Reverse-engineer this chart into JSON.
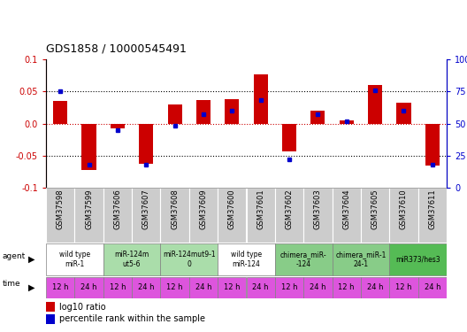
{
  "title": "GDS1858 / 10000545491",
  "samples": [
    "GSM37598",
    "GSM37599",
    "GSM37606",
    "GSM37607",
    "GSM37608",
    "GSM37609",
    "GSM37600",
    "GSM37601",
    "GSM37602",
    "GSM37603",
    "GSM37604",
    "GSM37605",
    "GSM37610",
    "GSM37611"
  ],
  "log10_ratio": [
    0.035,
    -0.072,
    -0.007,
    -0.063,
    0.03,
    0.037,
    0.038,
    0.077,
    -0.044,
    0.02,
    0.005,
    0.06,
    0.032,
    -0.065
  ],
  "percentile_rank": [
    75,
    18,
    45,
    18,
    48,
    57,
    60,
    68,
    22,
    57,
    52,
    76,
    60,
    18
  ],
  "ylim": [
    -0.1,
    0.1
  ],
  "y2lim": [
    0,
    100
  ],
  "yticks": [
    -0.1,
    -0.05,
    0.0,
    0.05,
    0.1
  ],
  "y2ticks": [
    0,
    25,
    50,
    75,
    100
  ],
  "bar_color": "#cc0000",
  "dot_color": "#0000cc",
  "agent_groups": [
    {
      "label": "wild type\nmiR-1",
      "start": 0,
      "end": 2,
      "color": "#ffffff"
    },
    {
      "label": "miR-124m\nut5-6",
      "start": 2,
      "end": 4,
      "color": "#aaddaa"
    },
    {
      "label": "miR-124mut9-1\n0",
      "start": 4,
      "end": 6,
      "color": "#aaddaa"
    },
    {
      "label": "wild type\nmiR-124",
      "start": 6,
      "end": 8,
      "color": "#ffffff"
    },
    {
      "label": "chimera_miR-\n-124",
      "start": 8,
      "end": 10,
      "color": "#88cc88"
    },
    {
      "label": "chimera_miR-1\n24-1",
      "start": 10,
      "end": 12,
      "color": "#88cc88"
    },
    {
      "label": "miR373/hes3",
      "start": 12,
      "end": 14,
      "color": "#55bb55"
    }
  ],
  "time_labels": [
    "12 h",
    "24 h",
    "12 h",
    "24 h",
    "12 h",
    "24 h",
    "12 h",
    "24 h",
    "12 h",
    "24 h",
    "12 h",
    "24 h",
    "12 h",
    "24 h"
  ],
  "time_color": "#dd55dd",
  "sample_bg": "#cccccc",
  "legend_red": "log10 ratio",
  "legend_blue": "percentile rank within the sample"
}
